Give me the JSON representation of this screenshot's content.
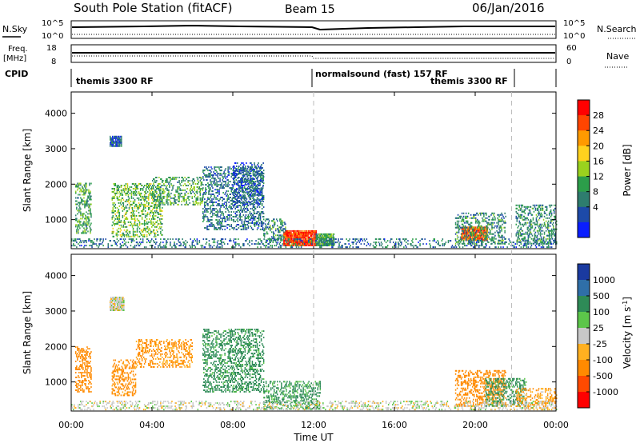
{
  "header": {
    "station": "South Pole Station (fitACF)",
    "beam": "Beam 15",
    "date": "06/Jan/2016"
  },
  "status_panels": {
    "nsky_label": "N.Sky",
    "nsearch_label": "N.Search",
    "freq_label_1": "Freq.",
    "freq_label_2": "[MHz]",
    "nave_label": "Nave",
    "cpid_label": "CPID",
    "left_ticks_top": [
      "10^5",
      "10^0"
    ],
    "right_ticks_top": [
      "10^5",
      "10^0"
    ],
    "freq_ticks": [
      "18",
      "8"
    ],
    "nave_ticks": [
      "60",
      "0"
    ],
    "cpid_segments": [
      {
        "label": "themis 3300 RF",
        "start_hour": 0.0,
        "end_hour": 12.0
      },
      {
        "label": "normalsound (fast) 157 RF",
        "start_hour": 12.0,
        "end_hour": 21.8
      },
      {
        "label": "themis 3300 RF",
        "start_hour": 18.5,
        "end_hour": 21.8
      }
    ]
  },
  "axes": {
    "ylabel": "Slant Range [km]",
    "xlabel": "Time UT",
    "x_ticks": [
      "00:00",
      "04:00",
      "08:00",
      "12:00",
      "16:00",
      "20:00",
      "00:00"
    ],
    "x_tick_hours": [
      0,
      4,
      8,
      12,
      16,
      20,
      24
    ],
    "y_ticks": [
      1000,
      2000,
      3000,
      4000
    ],
    "ylim": [
      180,
      4600
    ],
    "xlim": [
      0,
      24
    ],
    "mode_change_hours": [
      12.0,
      21.8
    ]
  },
  "power_colorbar": {
    "label": "Power [dB]",
    "ticks": [
      "28",
      "24",
      "20",
      "16",
      "12",
      "8",
      "4"
    ],
    "colors": [
      "#ff0000",
      "#ff4500",
      "#ff9a00",
      "#ffd21e",
      "#9ad21e",
      "#2c9e4a",
      "#2e7d6e",
      "#1d4aa8",
      "#0a1eff"
    ]
  },
  "velocity_colorbar": {
    "label": "Velocity [m s^-1]",
    "label_main": "Velocity [m s",
    "label_sup": "-1",
    "label_end": "]",
    "ticks": [
      "1000",
      "500",
      "100",
      "25",
      "-25",
      "-100",
      "-500",
      "-1000"
    ],
    "colors": [
      "#1a3aa0",
      "#2f6fa8",
      "#2e8b57",
      "#5cc64a",
      "#c8c8c8",
      "#ffb020",
      "#ff8a00",
      "#ff4a00",
      "#ff0000"
    ]
  },
  "chart_data": [
    {
      "type": "heatmap",
      "title": "Power",
      "xlabel": "Time UT",
      "ylabel": "Slant Range [km]",
      "xlim": [
        0,
        24
      ],
      "ylim": [
        180,
        4600
      ],
      "value_units": "dB",
      "regions": [
        {
          "t0": 10.5,
          "t1": 12.1,
          "r0": 250,
          "r1": 700,
          "value": 28
        },
        {
          "t0": 12.1,
          "t1": 13.0,
          "r0": 250,
          "r1": 600,
          "value": 12
        },
        {
          "t0": 19.3,
          "t1": 20.6,
          "r0": 400,
          "r1": 800,
          "value": 26
        },
        {
          "t0": 19.0,
          "t1": 21.5,
          "r0": 300,
          "r1": 1200,
          "value": 10
        },
        {
          "t0": 0.2,
          "t1": 1.0,
          "r0": 600,
          "r1": 2000,
          "value": 12
        },
        {
          "t0": 0.0,
          "t1": 24.0,
          "r0": 200,
          "r1": 450,
          "value": 8
        },
        {
          "t0": 1.9,
          "t1": 2.5,
          "r0": 3050,
          "r1": 3350,
          "value": 6
        },
        {
          "t0": 2.0,
          "t1": 4.5,
          "r0": 500,
          "r1": 2000,
          "value": 14
        },
        {
          "t0": 4.0,
          "t1": 6.5,
          "r0": 1400,
          "r1": 2200,
          "value": 12
        },
        {
          "t0": 6.5,
          "t1": 9.5,
          "r0": 700,
          "r1": 2500,
          "value": 8
        },
        {
          "t0": 8.0,
          "t1": 9.5,
          "r0": 1400,
          "r1": 2600,
          "value": 6
        },
        {
          "t0": 9.5,
          "t1": 10.6,
          "r0": 400,
          "r1": 1000,
          "value": 10
        },
        {
          "t0": 22.0,
          "t1": 24.0,
          "r0": 300,
          "r1": 1400,
          "value": 10
        }
      ]
    },
    {
      "type": "heatmap",
      "title": "Velocity",
      "xlabel": "Time UT",
      "ylabel": "Slant Range [km]",
      "xlim": [
        0,
        24
      ],
      "ylim": [
        180,
        4600
      ],
      "value_units": "m s^-1",
      "regions": [
        {
          "t0": 0.2,
          "t1": 1.0,
          "r0": 700,
          "r1": 2000,
          "value": -300
        },
        {
          "t0": 2.0,
          "t1": 3.2,
          "r0": 600,
          "r1": 1600,
          "value": -200
        },
        {
          "t0": 3.2,
          "t1": 6.0,
          "r0": 1400,
          "r1": 2200,
          "value": -150
        },
        {
          "t0": 1.9,
          "t1": 2.6,
          "r0": 3000,
          "r1": 3400,
          "value": 0
        },
        {
          "t0": 6.5,
          "t1": 9.5,
          "r0": 700,
          "r1": 2500,
          "value": 200
        },
        {
          "t0": 9.5,
          "t1": 12.3,
          "r0": 220,
          "r1": 1000,
          "value": 150
        },
        {
          "t0": 19.0,
          "t1": 21.5,
          "r0": 300,
          "r1": 1300,
          "value": -300
        },
        {
          "t0": 20.5,
          "t1": 22.5,
          "r0": 300,
          "r1": 1100,
          "value": 200
        },
        {
          "t0": 22.0,
          "t1": 24.0,
          "r0": 200,
          "r1": 800,
          "value": -100
        },
        {
          "t0": 0.0,
          "t1": 24.0,
          "r0": 200,
          "r1": 450,
          "value": 0
        }
      ]
    }
  ]
}
